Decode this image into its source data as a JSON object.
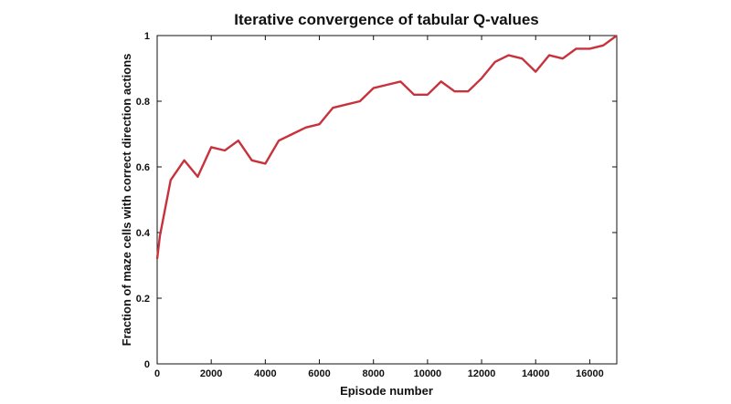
{
  "chart_data": {
    "type": "line",
    "title": "Iterative convergence of tabular Q-values",
    "xlabel": "Episode number",
    "ylabel": "Fraction of maze cells with correct direction actions",
    "xlim": [
      0,
      17000
    ],
    "ylim": [
      0,
      1
    ],
    "xticks": [
      0,
      2000,
      4000,
      6000,
      8000,
      10000,
      12000,
      14000,
      16000
    ],
    "yticks": [
      0,
      0.2,
      0.4,
      0.6,
      0.8,
      1
    ],
    "ytick_labels": [
      "0",
      "0.2",
      "0.4",
      "0.6",
      "0.8",
      "1"
    ],
    "grid": false,
    "legend": "none",
    "line_color": "#c8323c",
    "series": [
      {
        "x": [
          0,
          100,
          500,
          1000,
          1500,
          2000,
          2500,
          3000,
          3500,
          4000,
          4500,
          5000,
          5500,
          6000,
          6500,
          7000,
          7500,
          8000,
          8500,
          9000,
          9500,
          10000,
          10500,
          11000,
          11500,
          12000,
          12500,
          13000,
          13500,
          14000,
          14500,
          15000,
          15500,
          16000,
          16500,
          17000
        ],
        "y": [
          0.32,
          0.39,
          0.56,
          0.62,
          0.57,
          0.66,
          0.65,
          0.68,
          0.62,
          0.61,
          0.68,
          0.7,
          0.72,
          0.73,
          0.78,
          0.79,
          0.8,
          0.84,
          0.85,
          0.86,
          0.82,
          0.82,
          0.86,
          0.83,
          0.83,
          0.87,
          0.92,
          0.94,
          0.93,
          0.89,
          0.94,
          0.93,
          0.96,
          0.96,
          0.97,
          1.0
        ]
      }
    ]
  }
}
